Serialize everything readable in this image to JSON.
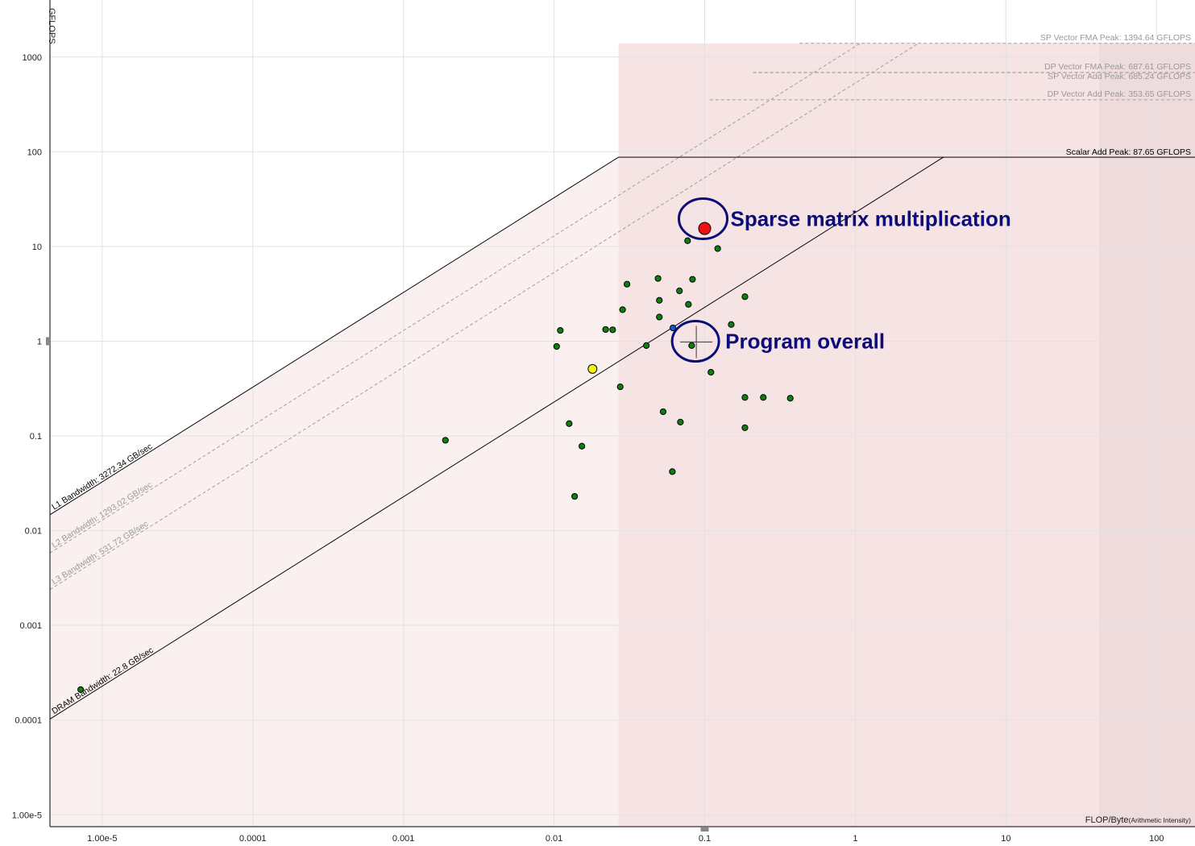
{
  "chart_data": {
    "type": "scatter",
    "xscale": "log",
    "yscale": "log",
    "xlim": [
      4.5e-06,
      180
    ],
    "ylim": [
      7.5e-06,
      4000
    ],
    "grid": true,
    "ylabel": "GFLOPS",
    "xlabel": "FLOP/Byte",
    "xlabel_suffix": "(Arithmetic Intensity)",
    "x_ticks": [
      {
        "value": 1e-05,
        "label": "1.00e-5"
      },
      {
        "value": 0.0001,
        "label": "0.0001"
      },
      {
        "value": 0.001,
        "label": "0.001"
      },
      {
        "value": 0.01,
        "label": "0.01"
      },
      {
        "value": 0.1,
        "label": "0.1"
      },
      {
        "value": 1,
        "label": "1"
      },
      {
        "value": 10,
        "label": "10"
      },
      {
        "value": 100,
        "label": "100"
      }
    ],
    "y_ticks": [
      {
        "value": 1e-05,
        "label": "1.00e-5"
      },
      {
        "value": 0.0001,
        "label": "0.0001"
      },
      {
        "value": 0.001,
        "label": "0.001"
      },
      {
        "value": 0.01,
        "label": "0.01"
      },
      {
        "value": 0.1,
        "label": "0.1"
      },
      {
        "value": 1,
        "label": "1"
      },
      {
        "value": 10,
        "label": "10"
      },
      {
        "value": 100,
        "label": "100"
      },
      {
        "value": 1000,
        "label": "1000"
      }
    ],
    "bandwidth_roofs": [
      {
        "label": "L1 Bandwidth: 3272.34 GB/sec",
        "gbps": 3272.34,
        "peak": 87.65,
        "style": "solid"
      },
      {
        "label": "L2 Bandwidth: 1293.02 GB/sec",
        "gbps": 1293.02,
        "peak": 1394.64,
        "style": "dashed"
      },
      {
        "label": "L3 Bandwidth: 531.72 GB/sec",
        "gbps": 531.72,
        "peak": 1394.64,
        "style": "dashed"
      },
      {
        "label": "DRAM Bandwidth: 22.8 GB/sec",
        "gbps": 22.8,
        "peak": 87.65,
        "style": "solid"
      }
    ],
    "compute_roofs": [
      {
        "label": "SP Vector FMA Peak: 1394.64 GFLOPS",
        "gflops": 1394.64,
        "style": "dashed"
      },
      {
        "label": "DP Vector FMA Peak: 687.61 GFLOPS",
        "gflops": 687.61,
        "style": "dashed"
      },
      {
        "label": "SP Vector Add Peak: 685.24 GFLOPS",
        "gflops": 685.24,
        "style": "dashed"
      },
      {
        "label": "DP Vector Add Peak: 353.65 GFLOPS",
        "gflops": 353.65,
        "style": "dashed"
      },
      {
        "label": "Scalar Add Peak: 87.65 GFLOPS",
        "gflops": 87.65,
        "style": "solid"
      }
    ],
    "points": [
      {
        "x": 7.2e-06,
        "y": 0.00021,
        "color": "green",
        "size": "small"
      },
      {
        "x": 0.0019,
        "y": 0.09,
        "color": "green",
        "size": "small"
      },
      {
        "x": 0.0104,
        "y": 0.88,
        "color": "green",
        "size": "small"
      },
      {
        "x": 0.011,
        "y": 1.3,
        "color": "green",
        "size": "small"
      },
      {
        "x": 0.0126,
        "y": 0.135,
        "color": "green",
        "size": "small"
      },
      {
        "x": 0.0137,
        "y": 0.023,
        "color": "green",
        "size": "small"
      },
      {
        "x": 0.0153,
        "y": 0.078,
        "color": "green",
        "size": "small"
      },
      {
        "x": 0.018,
        "y": 0.51,
        "color": "yellow",
        "size": "medium"
      },
      {
        "x": 0.022,
        "y": 1.33,
        "color": "green",
        "size": "small"
      },
      {
        "x": 0.0245,
        "y": 1.32,
        "color": "green",
        "size": "small"
      },
      {
        "x": 0.0275,
        "y": 0.33,
        "color": "green",
        "size": "small"
      },
      {
        "x": 0.0285,
        "y": 2.15,
        "color": "green",
        "size": "small"
      },
      {
        "x": 0.0305,
        "y": 4.0,
        "color": "green",
        "size": "small"
      },
      {
        "x": 0.041,
        "y": 0.9,
        "color": "green",
        "size": "small"
      },
      {
        "x": 0.049,
        "y": 4.6,
        "color": "green",
        "size": "small"
      },
      {
        "x": 0.05,
        "y": 2.7,
        "color": "green",
        "size": "small"
      },
      {
        "x": 0.05,
        "y": 1.8,
        "color": "green",
        "size": "small"
      },
      {
        "x": 0.053,
        "y": 0.18,
        "color": "green",
        "size": "small"
      },
      {
        "x": 0.061,
        "y": 0.042,
        "color": "green",
        "size": "small"
      },
      {
        "x": 0.0615,
        "y": 1.38,
        "color": "blue",
        "size": "small"
      },
      {
        "x": 0.068,
        "y": 3.4,
        "color": "green",
        "size": "small"
      },
      {
        "x": 0.069,
        "y": 0.14,
        "color": "green",
        "size": "small"
      },
      {
        "x": 0.077,
        "y": 11.5,
        "color": "green",
        "size": "small"
      },
      {
        "x": 0.078,
        "y": 2.45,
        "color": "green",
        "size": "small"
      },
      {
        "x": 0.082,
        "y": 0.9,
        "color": "green",
        "size": "small"
      },
      {
        "x": 0.083,
        "y": 4.5,
        "color": "green",
        "size": "small"
      },
      {
        "x": 0.1,
        "y": 15.5,
        "color": "red",
        "size": "large"
      },
      {
        "x": 0.11,
        "y": 0.47,
        "color": "green",
        "size": "small"
      },
      {
        "x": 0.122,
        "y": 9.5,
        "color": "green",
        "size": "small"
      },
      {
        "x": 0.15,
        "y": 1.5,
        "color": "green",
        "size": "small"
      },
      {
        "x": 0.185,
        "y": 2.95,
        "color": "green",
        "size": "small"
      },
      {
        "x": 0.185,
        "y": 0.255,
        "color": "green",
        "size": "small"
      },
      {
        "x": 0.185,
        "y": 0.122,
        "color": "green",
        "size": "small"
      },
      {
        "x": 0.245,
        "y": 0.255,
        "color": "green",
        "size": "small"
      },
      {
        "x": 0.37,
        "y": 0.25,
        "color": "green",
        "size": "small"
      }
    ],
    "program_overall": {
      "x": 0.088,
      "y": 0.98
    },
    "annotations": [
      {
        "text": "Sparse matrix multiplication",
        "x": 0.1,
        "y": 15.5
      },
      {
        "text": "Program overall",
        "x": 0.088,
        "y": 0.98
      }
    ],
    "colors": {
      "green": "#0f7d0f",
      "red": "#ee1111",
      "yellow": "#f4f40a",
      "blue": "#1a55c8",
      "callout": "#0b0b7a",
      "zone_light": "#fbf0f0",
      "zone_mid": "#f6e4e4",
      "zone_dark": "#eedcdc"
    }
  }
}
